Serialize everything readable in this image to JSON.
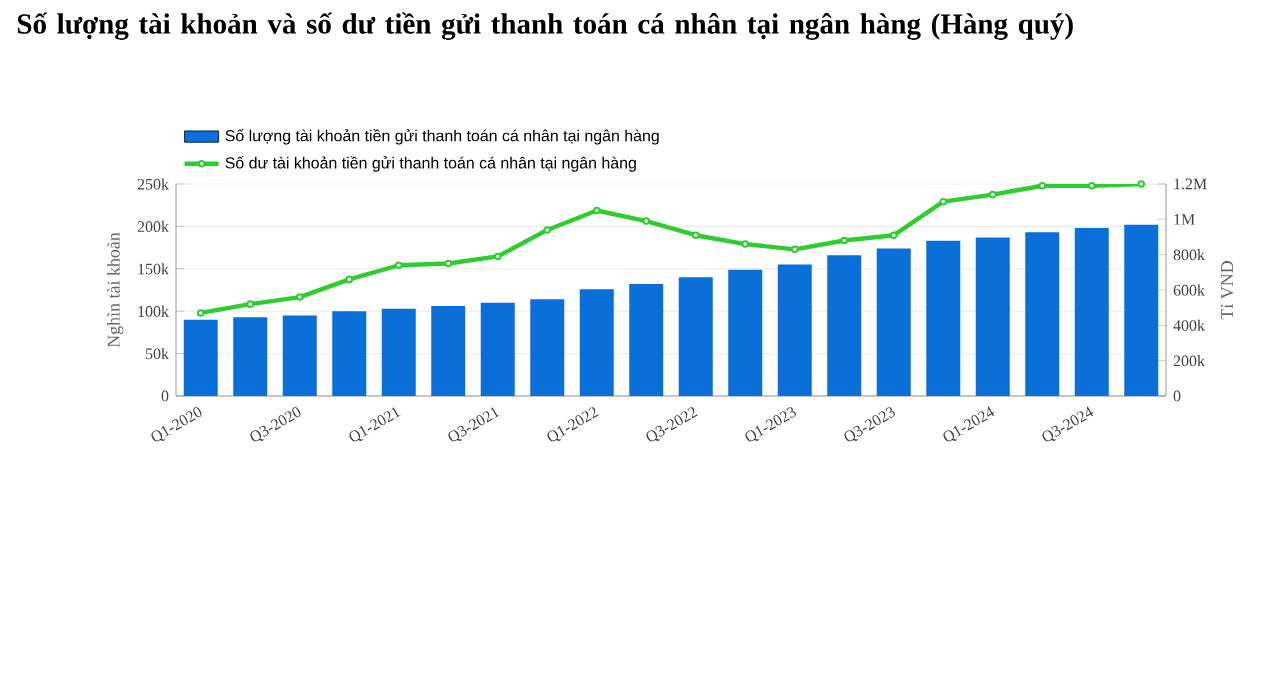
{
  "chart_data": {
    "type": "bar",
    "title": "Số lượng tài khoản và số dư tiền gửi thanh toán cá nhân tại ngân hàng (Hàng quý)",
    "categories": [
      "Q1-2020",
      null,
      "Q3-2020",
      null,
      "Q1-2021",
      null,
      "Q3-2021",
      null,
      "Q1-2022",
      null,
      "Q3-2022",
      null,
      "Q1-2023",
      null,
      "Q3-2023",
      null,
      "Q1-2024",
      null,
      "Q3-2024",
      null
    ],
    "series": [
      {
        "name": "Số lượng tài khoản tiền gửi thanh toán cá nhân tại ngân hàng",
        "color": "#0a6fd8",
        "values": [
          90000,
          93000,
          95000,
          100000,
          103000,
          106000,
          110000,
          114000,
          126000,
          132000,
          140000,
          149000,
          155000,
          166000,
          174000,
          183000,
          187000,
          193000,
          198000,
          202000
        ]
      },
      {
        "name": "Số dư tài khoản tiền gửi thanh toán cá nhân tại ngân hàng",
        "type": "line",
        "axis": "y2",
        "color": "#2ecc2e",
        "marker": "circle",
        "values": [
          470000,
          520000,
          560000,
          660000,
          740000,
          750000,
          790000,
          940000,
          1050000,
          990000,
          910000,
          860000,
          830000,
          880000,
          910000,
          1100000,
          1140000,
          1190000,
          1190000,
          1200000
        ]
      }
    ],
    "ylabel": "Nghìn tài khoản",
    "y2label": "Tỉ VND",
    "ylim": [
      0,
      250000
    ],
    "yticks": [
      {
        "value": 0,
        "label": "0"
      },
      {
        "value": 50000,
        "label": "50k"
      },
      {
        "value": 100000,
        "label": "100k"
      },
      {
        "value": 150000,
        "label": "150k"
      },
      {
        "value": 200000,
        "label": "200k"
      },
      {
        "value": 250000,
        "label": "250k"
      }
    ],
    "y2lim": [
      0,
      1200000
    ],
    "y2ticks": [
      {
        "value": 0,
        "label": "0"
      },
      {
        "value": 200000,
        "label": "200k"
      },
      {
        "value": 400000,
        "label": "400k"
      },
      {
        "value": 600000,
        "label": "600k"
      },
      {
        "value": 800000,
        "label": "800k"
      },
      {
        "value": 1000000,
        "label": "1M"
      },
      {
        "value": 1200000,
        "label": "1.2M"
      }
    ],
    "grid": "y",
    "legend": "top left"
  }
}
